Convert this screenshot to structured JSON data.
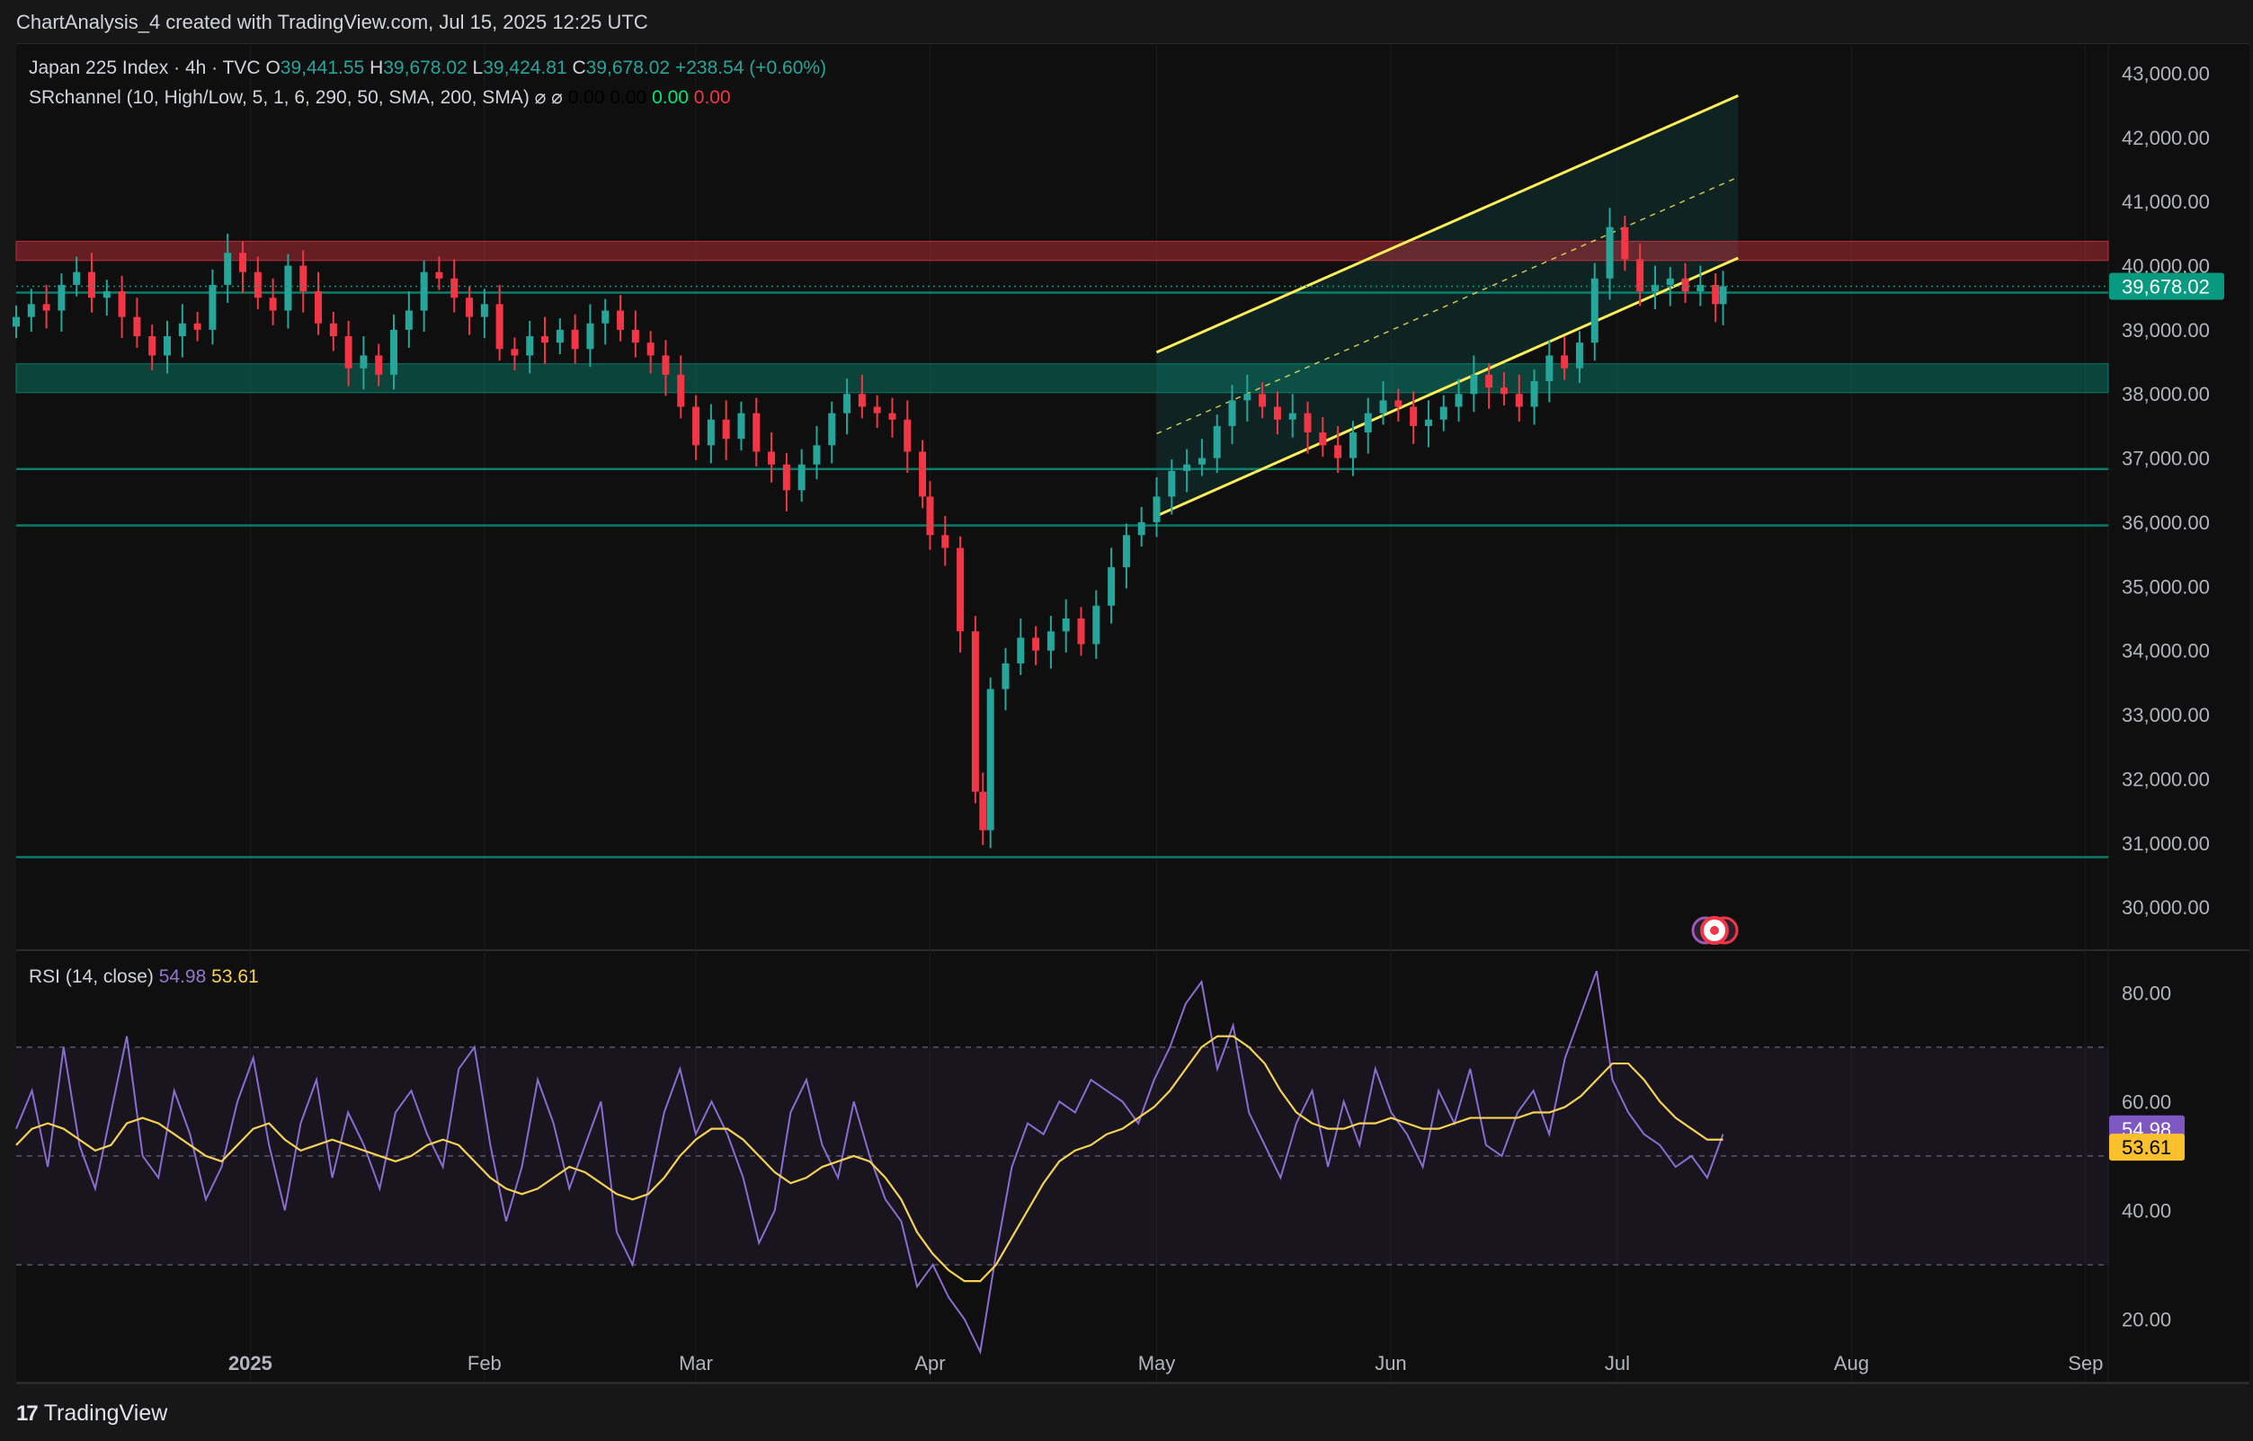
{
  "header": {
    "attribution": "ChartAnalysis_4 created with TradingView.com, Jul 15, 2025 12:25 UTC"
  },
  "legend": {
    "symbol": "Japan 225 Index · 4h · TVC",
    "o_label": "O",
    "o_value": "39,441.55",
    "h_label": "H",
    "h_value": "39,678.02",
    "l_label": "L",
    "l_value": "39,424.81",
    "c_label": "C",
    "c_value": "39,678.02",
    "change": "+238.54 (+0.60%)",
    "indicator": "SRchannel (10, High/Low, 5, 1, 6, 290, 50, SMA, 200, SMA)",
    "indicator_icons": "⌀ ⌀",
    "ind_v1": "0.00",
    "ind_v2": "0.00",
    "ind_v3": "0.00",
    "ind_v4": "0.00",
    "rsi_label": "RSI (14, close)",
    "rsi_value": "54.98",
    "rsi_ma_value": "53.61"
  },
  "footer": {
    "brand": "TradingView",
    "logo_glyph": "17"
  },
  "colors": {
    "up": "#26a69a",
    "down": "#f23645",
    "channel": "#ffee58",
    "rsi": "#8b6cd0",
    "rsi_ma": "#f7d154",
    "price_tag": "#089981",
    "rsi_tag": "#7e57c2",
    "rsima_tag": "#fbc02d"
  },
  "chart_data": [
    {
      "type": "candlestick",
      "title": "Japan 225 Index · 4h · TVC",
      "ylim": [
        29400,
        43300
      ],
      "y_ticks": [
        30000,
        31000,
        32000,
        33000,
        34000,
        35000,
        36000,
        37000,
        38000,
        39000,
        40000,
        41000,
        42000,
        43000
      ],
      "y_tick_labels": [
        "30,000.00",
        "31,000.00",
        "32,000.00",
        "33,000.00",
        "34,000.00",
        "35,000.00",
        "36,000.00",
        "37,000.00",
        "38,000.00",
        "39,000.00",
        "40,000.00",
        "41,000.00",
        "42,000.00",
        "43,000.00"
      ],
      "x_range": [
        "2024-12-01",
        "2025-09-04"
      ],
      "x_ticks": [
        {
          "label": "2025",
          "date": "2025-01-01",
          "bold": true
        },
        {
          "label": "Feb",
          "date": "2025-02-01"
        },
        {
          "label": "Mar",
          "date": "2025-03-01"
        },
        {
          "label": "Apr",
          "date": "2025-04-01"
        },
        {
          "label": "May",
          "date": "2025-05-01"
        },
        {
          "label": "Jun",
          "date": "2025-06-01"
        },
        {
          "label": "Jul",
          "date": "2025-07-01"
        },
        {
          "label": "Aug",
          "date": "2025-08-01"
        },
        {
          "label": "Sep",
          "date": "2025-09-01"
        }
      ],
      "last_price": 39678.02,
      "last_price_label": "39,678.02",
      "series": [
        {
          "name": "Japan 225 Index",
          "points": [
            [
              "2024-12-01",
              39200
            ],
            [
              "2024-12-03",
              39400
            ],
            [
              "2024-12-05",
              39300
            ],
            [
              "2024-12-07",
              39700
            ],
            [
              "2024-12-09",
              39900
            ],
            [
              "2024-12-11",
              39500
            ],
            [
              "2024-12-13",
              39600
            ],
            [
              "2024-12-15",
              39200
            ],
            [
              "2024-12-17",
              38900
            ],
            [
              "2024-12-19",
              38600
            ],
            [
              "2024-12-21",
              38900
            ],
            [
              "2024-12-23",
              39100
            ],
            [
              "2024-12-25",
              39000
            ],
            [
              "2024-12-27",
              39700
            ],
            [
              "2024-12-29",
              40200
            ],
            [
              "2024-12-31",
              39900
            ],
            [
              "2025-01-02",
              39500
            ],
            [
              "2025-01-04",
              39300
            ],
            [
              "2025-01-06",
              40000
            ],
            [
              "2025-01-08",
              39600
            ],
            [
              "2025-01-10",
              39100
            ],
            [
              "2025-01-12",
              38900
            ],
            [
              "2025-01-14",
              38400
            ],
            [
              "2025-01-16",
              38600
            ],
            [
              "2025-01-18",
              38300
            ],
            [
              "2025-01-20",
              39000
            ],
            [
              "2025-01-22",
              39300
            ],
            [
              "2025-01-24",
              39900
            ],
            [
              "2025-01-26",
              39800
            ],
            [
              "2025-01-28",
              39500
            ],
            [
              "2025-01-30",
              39200
            ],
            [
              "2025-02-01",
              39400
            ],
            [
              "2025-02-03",
              38700
            ],
            [
              "2025-02-05",
              38600
            ],
            [
              "2025-02-07",
              38900
            ],
            [
              "2025-02-09",
              38800
            ],
            [
              "2025-02-11",
              39000
            ],
            [
              "2025-02-13",
              38700
            ],
            [
              "2025-02-15",
              39100
            ],
            [
              "2025-02-17",
              39300
            ],
            [
              "2025-02-19",
              39000
            ],
            [
              "2025-02-21",
              38800
            ],
            [
              "2025-02-23",
              38600
            ],
            [
              "2025-02-25",
              38300
            ],
            [
              "2025-02-27",
              37800
            ],
            [
              "2025-03-01",
              37200
            ],
            [
              "2025-03-03",
              37600
            ],
            [
              "2025-03-05",
              37300
            ],
            [
              "2025-03-07",
              37700
            ],
            [
              "2025-03-09",
              37100
            ],
            [
              "2025-03-11",
              36900
            ],
            [
              "2025-03-13",
              36500
            ],
            [
              "2025-03-15",
              36900
            ],
            [
              "2025-03-17",
              37200
            ],
            [
              "2025-03-19",
              37700
            ],
            [
              "2025-03-21",
              38000
            ],
            [
              "2025-03-23",
              37800
            ],
            [
              "2025-03-25",
              37700
            ],
            [
              "2025-03-27",
              37600
            ],
            [
              "2025-03-29",
              37100
            ],
            [
              "2025-03-31",
              36400
            ],
            [
              "2025-04-01",
              35800
            ],
            [
              "2025-04-03",
              35600
            ],
            [
              "2025-04-05",
              34300
            ],
            [
              "2025-04-07",
              31800
            ],
            [
              "2025-04-08",
              31200
            ],
            [
              "2025-04-09",
              33400
            ],
            [
              "2025-04-11",
              33800
            ],
            [
              "2025-04-13",
              34200
            ],
            [
              "2025-04-15",
              34000
            ],
            [
              "2025-04-17",
              34300
            ],
            [
              "2025-04-19",
              34500
            ],
            [
              "2025-04-21",
              34100
            ],
            [
              "2025-04-23",
              34700
            ],
            [
              "2025-04-25",
              35300
            ],
            [
              "2025-04-27",
              35800
            ],
            [
              "2025-04-29",
              36000
            ],
            [
              "2025-05-01",
              36400
            ],
            [
              "2025-05-03",
              36800
            ],
            [
              "2025-05-05",
              36900
            ],
            [
              "2025-05-07",
              37000
            ],
            [
              "2025-05-09",
              37500
            ],
            [
              "2025-05-11",
              37900
            ],
            [
              "2025-05-13",
              38000
            ],
            [
              "2025-05-15",
              37800
            ],
            [
              "2025-05-17",
              37600
            ],
            [
              "2025-05-19",
              37700
            ],
            [
              "2025-05-21",
              37400
            ],
            [
              "2025-05-23",
              37200
            ],
            [
              "2025-05-25",
              37000
            ],
            [
              "2025-05-27",
              37400
            ],
            [
              "2025-05-29",
              37700
            ],
            [
              "2025-05-31",
              37900
            ],
            [
              "2025-06-02",
              37800
            ],
            [
              "2025-06-04",
              37500
            ],
            [
              "2025-06-06",
              37600
            ],
            [
              "2025-06-08",
              37800
            ],
            [
              "2025-06-10",
              38000
            ],
            [
              "2025-06-12",
              38300
            ],
            [
              "2025-06-14",
              38100
            ],
            [
              "2025-06-16",
              38000
            ],
            [
              "2025-06-18",
              37800
            ],
            [
              "2025-06-20",
              38200
            ],
            [
              "2025-06-22",
              38600
            ],
            [
              "2025-06-24",
              38400
            ],
            [
              "2025-06-26",
              38800
            ],
            [
              "2025-06-28",
              39800
            ],
            [
              "2025-06-30",
              40600
            ],
            [
              "2025-07-02",
              40100
            ],
            [
              "2025-07-04",
              39600
            ],
            [
              "2025-07-06",
              39700
            ],
            [
              "2025-07-08",
              39800
            ],
            [
              "2025-07-10",
              39600
            ],
            [
              "2025-07-12",
              39700
            ],
            [
              "2025-07-14",
              39400
            ],
            [
              "2025-07-15",
              39678
            ]
          ]
        }
      ],
      "levels": [
        {
          "name": "resistance-zone",
          "from": 40080,
          "to": 40380,
          "color": "#f23645"
        },
        {
          "name": "support-zone",
          "from": 38020,
          "to": 38470,
          "color": "#089981"
        },
        {
          "name": "level-1",
          "value": 39580,
          "color": "#089981"
        },
        {
          "name": "level-2",
          "value": 36830,
          "color": "#089981"
        },
        {
          "name": "level-3",
          "value": 35950,
          "color": "#089981"
        },
        {
          "name": "level-4",
          "value": 30780,
          "color": "#089981"
        }
      ],
      "channel": {
        "start": "2025-05-01",
        "end": "2025-07-17",
        "upper": [
          38650,
          42650
        ],
        "middle": [
          37380,
          41380
        ],
        "lower": [
          36100,
          40120
        ]
      }
    },
    {
      "type": "line",
      "title": "RSI (14, close)",
      "ylim": [
        10,
        87
      ],
      "y_ticks": [
        20,
        40,
        60,
        80
      ],
      "y_tick_labels": [
        "20.00",
        "40.00",
        "60.00",
        "80.00"
      ],
      "bands": {
        "upper": 70,
        "middle": 50,
        "lower": 30
      },
      "series": [
        {
          "name": "RSI",
          "color": "#8b6cd0",
          "last": 54.98,
          "values": [
            55,
            62,
            48,
            70,
            52,
            44,
            58,
            72,
            50,
            46,
            62,
            54,
            42,
            48,
            60,
            68,
            52,
            40,
            56,
            64,
            46,
            58,
            52,
            44,
            58,
            62,
            54,
            48,
            66,
            70,
            52,
            38,
            48,
            64,
            56,
            44,
            52,
            60,
            36,
            30,
            44,
            58,
            66,
            54,
            60,
            54,
            46,
            34,
            40,
            58,
            64,
            52,
            46,
            60,
            50,
            42,
            38,
            26,
            30,
            24,
            20,
            14,
            32,
            48,
            56,
            54,
            60,
            58,
            64,
            62,
            60,
            56,
            64,
            70,
            78,
            82,
            66,
            74,
            58,
            52,
            46,
            56,
            62,
            48,
            60,
            52,
            66,
            58,
            54,
            48,
            62,
            56,
            66,
            52,
            50,
            58,
            62,
            54,
            68,
            76,
            84,
            64,
            58,
            54,
            52,
            48,
            50,
            46,
            54
          ]
        },
        {
          "name": "RSI MA",
          "color": "#f7d154",
          "last": 53.61,
          "values": [
            52,
            55,
            56,
            55,
            53,
            51,
            52,
            56,
            57,
            56,
            54,
            52,
            50,
            49,
            52,
            55,
            56,
            53,
            51,
            52,
            53,
            52,
            51,
            50,
            49,
            50,
            52,
            53,
            52,
            49,
            46,
            44,
            43,
            44,
            46,
            48,
            47,
            45,
            43,
            42,
            43,
            46,
            50,
            53,
            55,
            55,
            53,
            50,
            47,
            45,
            46,
            48,
            49,
            50,
            49,
            46,
            42,
            36,
            32,
            29,
            27,
            27,
            30,
            35,
            40,
            45,
            49,
            51,
            52,
            54,
            55,
            57,
            59,
            62,
            66,
            70,
            72,
            72,
            70,
            67,
            62,
            58,
            56,
            55,
            55,
            56,
            56,
            57,
            56,
            55,
            55,
            56,
            57,
            57,
            57,
            57,
            58,
            58,
            59,
            61,
            64,
            67,
            67,
            64,
            60,
            57,
            55,
            53,
            53
          ]
        }
      ]
    }
  ]
}
